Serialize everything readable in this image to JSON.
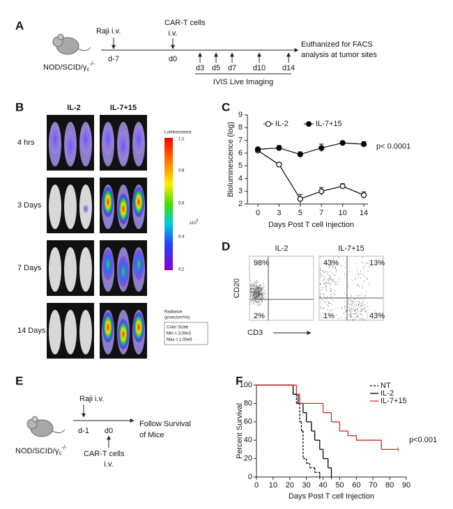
{
  "panel_a": {
    "letter": "A",
    "strain": {
      "base": "NOD/SCID/γ",
      "sub": "c",
      "sup": "-/-"
    },
    "raji": "Raji i.v.",
    "raji_day": "d-7",
    "cart": "CAR-T cells",
    "cart_route": "i.v.",
    "cart_day": "d0",
    "imaging_days": [
      "d3",
      "d5",
      "d7",
      "d10",
      "d14"
    ],
    "imaging": "IVIS Live Imaging",
    "endpoint": [
      "Euthanized for FACS",
      "analysis at tumor sites"
    ]
  },
  "panel_b": {
    "letter": "B",
    "columns": [
      "IL-2",
      "IL-7+15"
    ],
    "rows": [
      "4 hrs",
      "3 Days",
      "7 Days",
      "14 Days"
    ],
    "colorbar": {
      "title": "Luminescence",
      "ticks": [
        "1.0",
        "0.8",
        "0.6",
        "0.4",
        "0.2"
      ],
      "unit": {
        "base": "x10",
        "sup": "5"
      },
      "radiance": "Radiance",
      "radiance_unit": "(p/sec/cm²/sr)",
      "scale": [
        "Color Scale",
        "Min = 3.00e3",
        "Max = 1.00e5"
      ]
    }
  },
  "panel_d": {
    "letter": "D",
    "plots": [
      {
        "title": "IL-2",
        "quadrants": {
          "ul": "98%",
          "ll": "2%"
        }
      },
      {
        "title": "IL-7+15",
        "quadrants": {
          "ul": "43%",
          "ur": "13%",
          "ll": "1%",
          "lr": "43%"
        }
      }
    ],
    "y_label": "CD20",
    "x_label": "CD3"
  },
  "panel_e": {
    "letter": "E",
    "strain": {
      "base": "NOD/SCID/γ",
      "sub": "c",
      "sup": "-/-"
    },
    "raji": "Raji i.v.",
    "raji_day": "d-1",
    "cart_day": "d0",
    "cart": "CAR-T cells",
    "cart_route": "i.v.",
    "endpoint": [
      "Follow Survival",
      "of Mice"
    ]
  },
  "chart_data": [
    {
      "type": "line",
      "panel": "C",
      "y_label": "Bioluminescence (log)",
      "x_label": "Days Post T cell Injection",
      "categories": [
        0,
        3,
        5,
        7,
        10,
        14
      ],
      "series": [
        {
          "name": "IL-2",
          "color": "#000000",
          "marker": "open",
          "values": [
            6.2,
            5.1,
            2.4,
            3.0,
            3.4,
            2.7
          ],
          "errors": [
            0.1,
            0.15,
            0.35,
            0.3,
            0.2,
            0.25
          ]
        },
        {
          "name": "IL-7+15",
          "color": "#000000",
          "marker": "filled",
          "values": [
            6.3,
            6.4,
            5.9,
            6.4,
            6.8,
            6.7
          ],
          "errors": [
            0.15,
            0.2,
            0.2,
            0.3,
            0.15,
            0.2
          ]
        }
      ],
      "ylim": [
        2,
        9
      ],
      "yticks": [
        2,
        3,
        4,
        5,
        6,
        7,
        8,
        9
      ],
      "annotation": "p< 0.0001"
    },
    {
      "type": "step",
      "panel": "F",
      "y_label": "Percent Survival",
      "x_label": "Days Post T cell Injection",
      "xlim": [
        0,
        90
      ],
      "xticks": [
        0,
        10,
        20,
        30,
        40,
        50,
        60,
        70,
        80,
        90
      ],
      "ylim": [
        0,
        100
      ],
      "yticks": [
        0,
        20,
        40,
        60,
        80,
        100
      ],
      "legend": "upper right",
      "series": [
        {
          "name": "NT",
          "color": "#000000",
          "dash": true,
          "x": [
            0,
            22,
            24,
            26,
            27,
            28,
            30,
            32,
            35,
            38
          ],
          "values": [
            100,
            90,
            80,
            60,
            50,
            20,
            15,
            10,
            5,
            0
          ]
        },
        {
          "name": "IL-2",
          "color": "#000000",
          "dash": false,
          "x": [
            0,
            22,
            25,
            28,
            30,
            33,
            35,
            38,
            40,
            43,
            45
          ],
          "values": [
            100,
            90,
            80,
            70,
            60,
            50,
            40,
            30,
            20,
            10,
            0
          ]
        },
        {
          "name": "IL-7+15",
          "color": "#dd2222",
          "dash": false,
          "x": [
            0,
            24,
            26,
            40,
            45,
            50,
            55,
            60,
            75,
            85
          ],
          "values": [
            100,
            90,
            80,
            70,
            60,
            50,
            45,
            40,
            30,
            30
          ]
        }
      ],
      "annotation": "p<0.001"
    }
  ]
}
